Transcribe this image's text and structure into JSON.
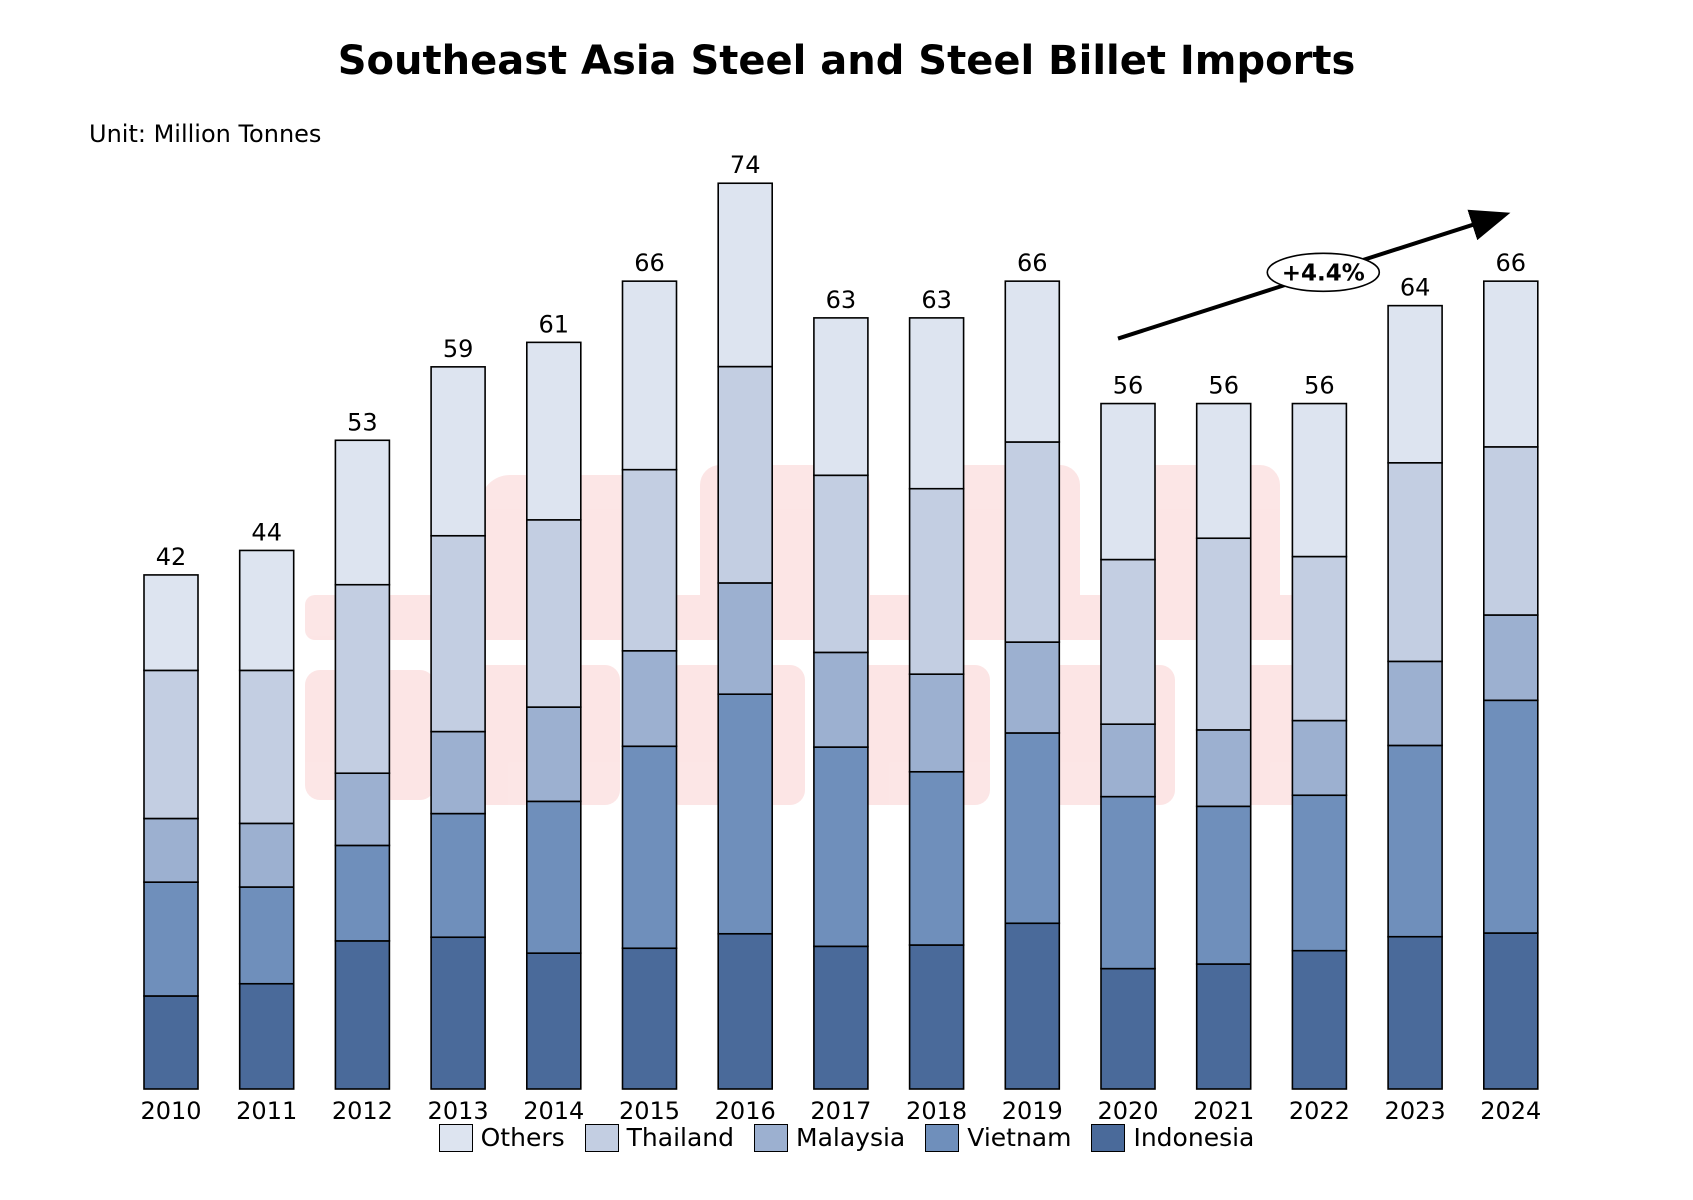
{
  "chart_data": {
    "type": "bar",
    "stacked": true,
    "title": "Southeast Asia Steel and Steel Billet Imports",
    "unit_label": "Unit: Million Tonnes",
    "xlabel": "",
    "ylabel": "",
    "ylim": [
      0,
      80
    ],
    "grid": false,
    "legend_position": "bottom",
    "categories": [
      "2010",
      "2011",
      "2012",
      "2013",
      "2014",
      "2015",
      "2016",
      "2017",
      "2018",
      "2019",
      "2020",
      "2021",
      "2022",
      "2023",
      "2024"
    ],
    "totals": [
      42,
      44,
      53,
      59,
      61,
      66,
      74,
      63,
      63,
      66,
      56,
      56,
      56,
      64,
      66
    ],
    "series": [
      {
        "name": "Indonesia",
        "color": "#4a6a9a",
        "values": [
          7.6,
          8.6,
          12.1,
          12.4,
          11.1,
          11.5,
          12.7,
          11.6,
          11.8,
          13.5,
          9.8,
          10.3,
          11.3,
          12.5,
          12.8
        ]
      },
      {
        "name": "Vietnam",
        "color": "#6f8fbb",
        "values": [
          9.3,
          7.9,
          7.8,
          10.1,
          12.4,
          16.5,
          19.6,
          16.2,
          14.2,
          15.5,
          14.0,
          13.0,
          12.7,
          15.7,
          19.1
        ]
      },
      {
        "name": "Malaysia",
        "color": "#9cb0d0",
        "values": [
          5.2,
          5.2,
          5.9,
          6.7,
          7.7,
          7.8,
          9.1,
          7.7,
          8.0,
          7.4,
          5.9,
          6.3,
          6.1,
          6.9,
          7.0
        ]
      },
      {
        "name": "Thailand",
        "color": "#c3cee2",
        "values": [
          12.1,
          12.5,
          15.4,
          16.0,
          15.3,
          14.8,
          17.7,
          14.4,
          15.2,
          16.3,
          13.4,
          15.8,
          13.4,
          16.3,
          13.8
        ]
      },
      {
        "name": "Others",
        "color": "#dde4f0",
        "values": [
          7.8,
          9.8,
          11.8,
          13.8,
          14.5,
          15.4,
          15.0,
          12.8,
          14.0,
          13.1,
          12.7,
          11.1,
          12.5,
          12.9,
          13.6
        ]
      }
    ],
    "legend_order": [
      "Others",
      "Thailand",
      "Malaysia",
      "Vietnam",
      "Indonesia"
    ],
    "annotation": {
      "text": "+4.4%",
      "from_category": "2020",
      "to_category": "2024"
    }
  }
}
